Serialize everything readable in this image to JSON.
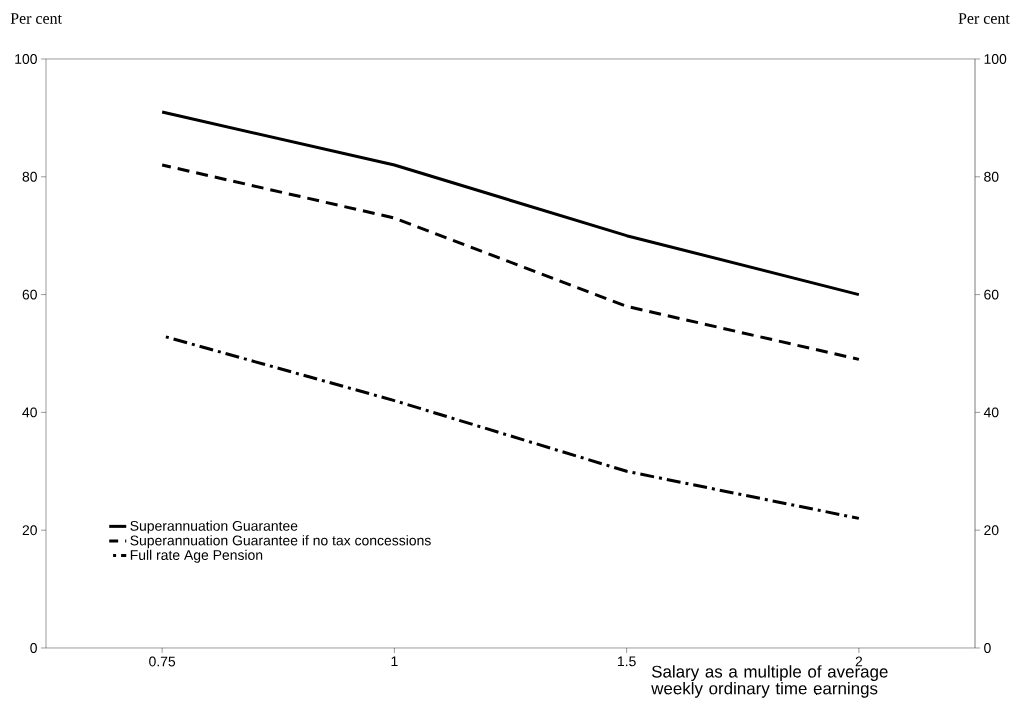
{
  "chart_data": {
    "type": "line",
    "categories": [
      "0.75",
      "1",
      "1.5",
      "2"
    ],
    "series": [
      {
        "name": "Superannuation Guarantee",
        "color": "#000000",
        "line_style": "solid",
        "values": [
          91,
          82,
          70,
          60
        ]
      },
      {
        "name": "Superannuation Guarantee if no tax concessions",
        "color": "#000000",
        "line_style": "dashed",
        "values": [
          82,
          73,
          58,
          49
        ]
      },
      {
        "name": "Full rate Age Pension",
        "color": "#000000",
        "line_style": "dashdot",
        "values": [
          53,
          42,
          30,
          22
        ]
      }
    ],
    "xlabel": "Salary as a multiple of average weekly ordinary time earnings",
    "ylabel": "Per cent",
    "y2label": "Per cent",
    "ylim": [
      0,
      100
    ],
    "yticks": [
      0,
      20,
      40,
      60,
      80,
      100
    ],
    "y2lim": [
      0,
      100
    ],
    "y2ticks": [
      0,
      20,
      40,
      60,
      80,
      100
    ],
    "grid": false,
    "legend": "bottom left",
    "marker": "none"
  }
}
